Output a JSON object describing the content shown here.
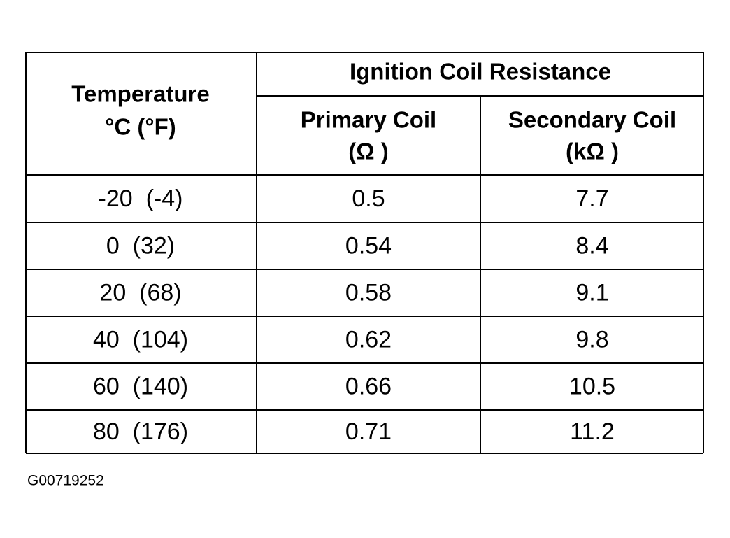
{
  "table": {
    "temperature_header": [
      "Temperature",
      "°C (°F)"
    ],
    "group_header": "Ignition Coil Resistance",
    "columns": [
      [
        "Primary Coil",
        "(Ω )"
      ],
      [
        "Secondary Coil",
        "(kΩ )"
      ]
    ],
    "rows": [
      [
        "-20  (-4)",
        "0.5",
        "7.7"
      ],
      [
        "0  (32)",
        "0.54",
        "8.4"
      ],
      [
        "20  (68)",
        "0.58",
        "9.1"
      ],
      [
        "40  (104)",
        "0.62",
        "9.8"
      ],
      [
        "60  (140)",
        "0.66",
        "10.5"
      ],
      [
        "80  (176)",
        "0.71",
        "11.2"
      ]
    ]
  },
  "footer": "G00719252"
}
